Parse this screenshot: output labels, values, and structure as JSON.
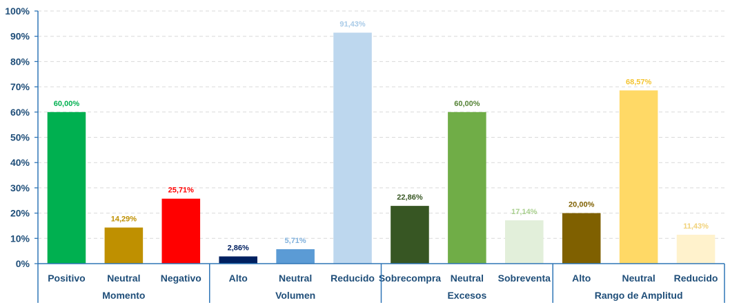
{
  "chart_data": {
    "type": "bar",
    "title": "",
    "xlabel": "",
    "ylabel": "",
    "ylim": [
      0,
      100
    ],
    "yticks": [
      "0%",
      "10%",
      "20%",
      "30%",
      "40%",
      "50%",
      "60%",
      "70%",
      "80%",
      "90%",
      "100%"
    ],
    "grid": true,
    "groups": [
      {
        "name": "Momento",
        "bars": [
          {
            "category": "Positivo",
            "value": 60.0,
            "label": "60,00%",
            "color": "#00b050",
            "label_color": "#00b050"
          },
          {
            "category": "Neutral",
            "value": 14.29,
            "label": "14,29%",
            "color": "#bf9000",
            "label_color": "#bf9000"
          },
          {
            "category": "Negativo",
            "value": 25.71,
            "label": "25,71%",
            "color": "#ff0000",
            "label_color": "#ff0000"
          }
        ]
      },
      {
        "name": "Volumen",
        "bars": [
          {
            "category": "Alto",
            "value": 2.86,
            "label": "2,86%",
            "color": "#002060",
            "label_color": "#002060"
          },
          {
            "category": "Neutral",
            "value": 5.71,
            "label": "5,71%",
            "color": "#5b9bd5",
            "label_color": "#7fb0dc"
          },
          {
            "category": "Reducido",
            "value": 91.43,
            "label": "91,43%",
            "color": "#bdd7ee",
            "label_color": "#a9cbe8"
          }
        ]
      },
      {
        "name": "Excesos",
        "bars": [
          {
            "category": "Sobrecompra",
            "value": 22.86,
            "label": "22,86%",
            "color": "#375623",
            "label_color": "#375623"
          },
          {
            "category": "Neutral",
            "value": 60.0,
            "label": "60,00%",
            "color": "#70ad47",
            "label_color": "#548235"
          },
          {
            "category": "Sobreventa",
            "value": 17.14,
            "label": "17,14%",
            "color": "#e2efda",
            "label_color": "#a9d08e"
          }
        ]
      },
      {
        "name": "Rango de Amplitud",
        "bars": [
          {
            "category": "Alto",
            "value": 20.0,
            "label": "20,00%",
            "color": "#7f6000",
            "label_color": "#7f6000"
          },
          {
            "category": "Neutral",
            "value": 68.57,
            "label": "68,57%",
            "color": "#ffd966",
            "label_color": "#f4c430"
          },
          {
            "category": "Reducido",
            "value": 11.43,
            "label": "11,43%",
            "color": "#fff2cc",
            "label_color": "#f1d27a"
          }
        ]
      }
    ]
  },
  "colors": {
    "axis_text": "#1f4e79",
    "axis_line": "#2e75b6",
    "grid": "#d9d9d9"
  }
}
